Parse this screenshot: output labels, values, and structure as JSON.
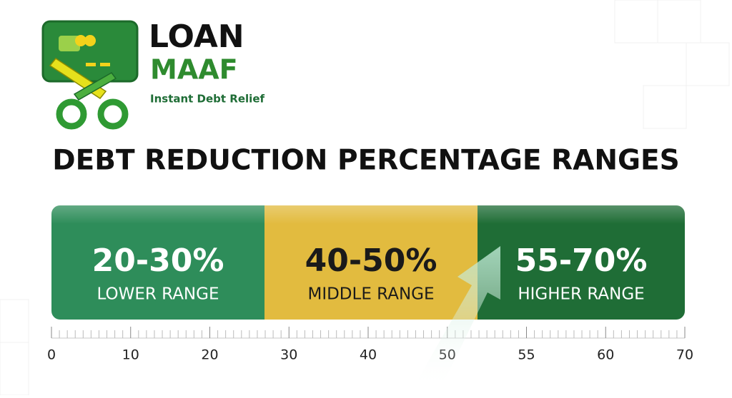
{
  "logo": {
    "line1": "LOAN",
    "line2": "MAAF",
    "tagline": "Instant Debt Relief"
  },
  "title": "DEBT REDUCTION PERCENTAGE RANGES",
  "segments": [
    {
      "range": "20-30%",
      "label": "LOWER RANGE",
      "color": "#2e8d5a"
    },
    {
      "range": "40-50%",
      "label": "MIDDLE RANGE",
      "color": "#e2bb3f"
    },
    {
      "range": "55-70%",
      "label": "HIGHER RANGE",
      "color": "#1f6d36"
    }
  ],
  "scale": [
    0,
    10,
    20,
    30,
    40,
    50,
    55,
    60,
    70
  ]
}
